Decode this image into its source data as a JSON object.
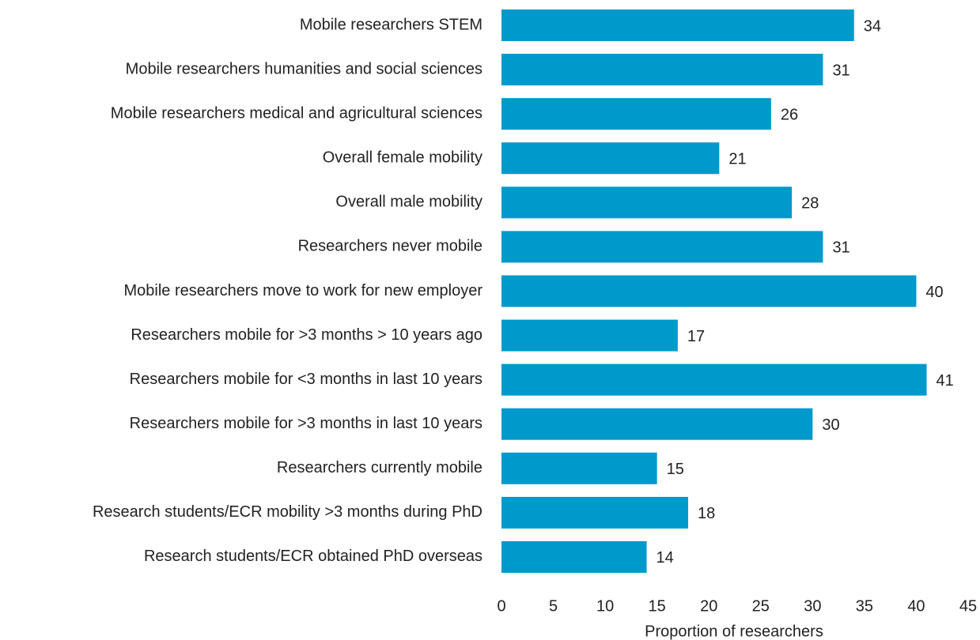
{
  "chart_data": {
    "type": "barh",
    "categories": [
      "Mobile researchers STEM",
      "Mobile researchers humanities and social sciences",
      "Mobile researchers medical and agricultural sciences",
      "Overall female mobility",
      "Overall male mobility",
      "Researchers never mobile",
      "Mobile researchers move to work for new employer",
      "Researchers mobile for >3 months > 10 years ago",
      "Researchers mobile for <3 months in last 10 years",
      "Researchers mobile for >3 months in last 10 years",
      "Researchers currently mobile",
      "Research students/ECR mobility >3 months during PhD",
      "Research students/ECR obtained PhD overseas"
    ],
    "values": [
      34,
      31,
      26,
      21,
      28,
      31,
      40,
      17,
      41,
      30,
      15,
      18,
      14
    ],
    "color": "#0099cc",
    "xlabel": "Proportion of researchers",
    "xlim": [
      0,
      45
    ],
    "xticks": [
      0,
      5,
      10,
      15,
      20,
      25,
      30,
      35,
      40,
      45
    ]
  }
}
